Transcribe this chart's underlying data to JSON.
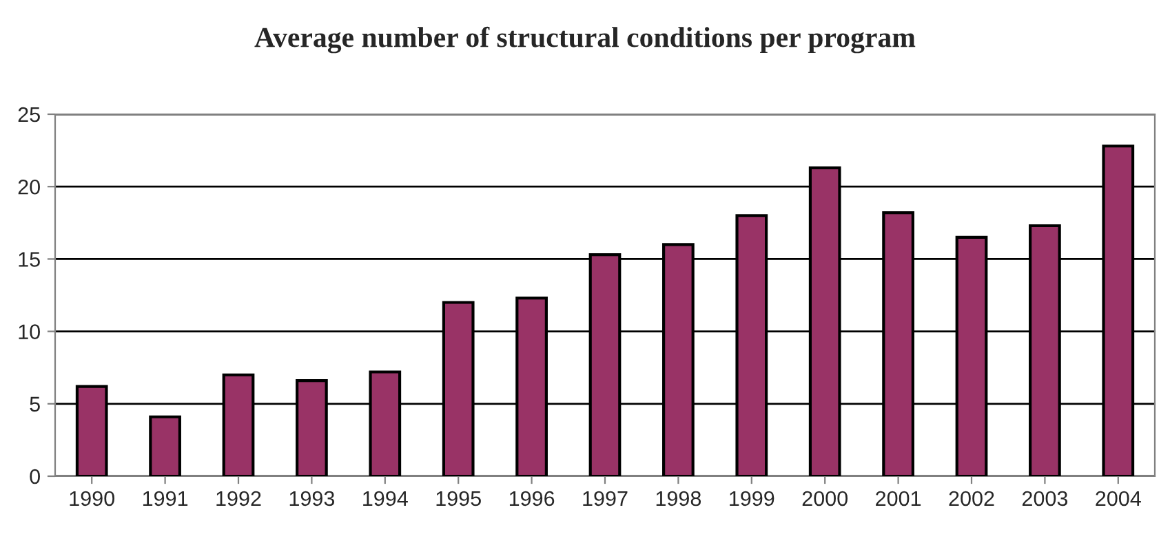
{
  "chart_data": {
    "type": "bar",
    "title": "Average number of structural conditions per program",
    "categories": [
      "1990",
      "1991",
      "1992",
      "1993",
      "1994",
      "1995",
      "1996",
      "1997",
      "1998",
      "1999",
      "2000",
      "2001",
      "2002",
      "2003",
      "2004"
    ],
    "values": [
      6.2,
      4.1,
      7.0,
      6.6,
      7.2,
      12.0,
      12.3,
      15.3,
      16.0,
      18.0,
      21.3,
      18.2,
      16.5,
      17.3,
      22.8
    ],
    "color": "#993366",
    "ylim": [
      0,
      25
    ],
    "yticks": [
      0,
      5,
      10,
      15,
      20,
      25
    ],
    "grid": "y",
    "legend": false
  }
}
